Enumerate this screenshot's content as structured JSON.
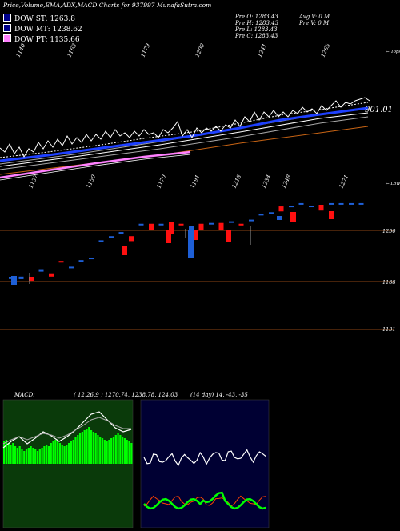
{
  "header": {
    "title": "Price,Volume,EMA,ADX,MACD Charts for 937997 MunafaSutra.com"
  },
  "legend": [
    {
      "label": "DOW ST: 1263.8",
      "color": "#ffffff"
    },
    {
      "label": "DOW MT: 1238.62",
      "color": "#ffffff"
    },
    {
      "label": "DOW PT: 1135.66",
      "color": "#ff80ff"
    }
  ],
  "ohlc": {
    "col1": [
      "Pre O: 1283.43",
      "Pre H: 1283.43",
      "Pre L: 1283.43",
      "Pre C: 1283.43"
    ],
    "col2": [
      "Avg V: 0 M",
      "Pre V: 0 M"
    ]
  },
  "labels": {
    "top": "← Tops",
    "lows": "← Lows",
    "last_value": "901.01"
  },
  "top_ticks": [
    "1140",
    "1163",
    "1179",
    "1200",
    "1241",
    "1265"
  ],
  "low_ticks": [
    "1137",
    "1150",
    "1170",
    "1191",
    "1218",
    "1234",
    "1248",
    "1271"
  ],
  "price_levels": [
    "1250",
    "1188",
    "1131"
  ],
  "macd": {
    "label": "MACD:",
    "params": "( 12,26,9 ) 1270.74, 1238.78, 124.03"
  },
  "adx": {
    "params": "(14 day) 14, -43, -35"
  },
  "colors": {
    "bg": "#000000",
    "up": "#1e5fd6",
    "down": "#ff1010",
    "ema_fast": "#1e40ff",
    "pink": "#ff80ff",
    "brown": "#c86414",
    "grid_line": "#8b4513",
    "macd_bg": "#0a3a0a",
    "macd_hist": "#00ff00",
    "adx_bg": "#000033",
    "adx_red": "#ff4000",
    "adx_green": "#00ff00"
  },
  "chart_data": {
    "type": "candlestick",
    "title": "Price,Volume,EMA,ADX,MACD Charts for 937997 MunafaSutra.com",
    "levels": [
      1250,
      1188,
      1131
    ],
    "candles": [
      {
        "c": "u",
        "o": 1193,
        "cl": 1192
      },
      {
        "c": "u",
        "o": 1191,
        "cl": 1194
      },
      {
        "c": "d",
        "o": 1193,
        "cl": 1189
      },
      {
        "c": "u",
        "o": 1202,
        "cl": 1200
      },
      {
        "c": "d",
        "o": 1197,
        "cl": 1194
      },
      {
        "c": "d",
        "o": 1213,
        "cl": 1211
      },
      {
        "c": "u",
        "o": 1205,
        "cl": 1206
      },
      {
        "c": "u",
        "o": 1213,
        "cl": 1214
      },
      {
        "c": "u",
        "o": 1216,
        "cl": 1217
      },
      {
        "c": "u",
        "o": 1238,
        "cl": 1238
      },
      {
        "c": "u",
        "o": 1241,
        "cl": 1243
      },
      {
        "c": "u",
        "o": 1248,
        "cl": 1247
      },
      {
        "c": "d",
        "o": 1243,
        "cl": 1237
      },
      {
        "c": "u",
        "o": 1257,
        "cl": 1258
      },
      {
        "c": "d",
        "o": 1258,
        "cl": 1250
      },
      {
        "c": "u",
        "o": 1258,
        "cl": 1258
      },
      {
        "c": "d",
        "o": 1260,
        "cl": 1246
      },
      {
        "c": "d",
        "o": 1258,
        "cl": 1257
      },
      {
        "c": "u",
        "o": 1255,
        "cl": 1237
      },
      {
        "c": "d",
        "o": 1258,
        "cl": 1250
      },
      {
        "c": "u",
        "o": 1258,
        "cl": 1259
      },
      {
        "c": "d",
        "o": 1259,
        "cl": 1250
      },
      {
        "c": "u",
        "o": 1261,
        "cl": 1261
      },
      {
        "c": "d",
        "o": 1258,
        "cl": 1256
      },
      {
        "c": "u",
        "o": 1262,
        "cl": 1263
      },
      {
        "c": "u",
        "o": 1269,
        "cl": 1270
      },
      {
        "c": "u",
        "o": 1272,
        "cl": 1271
      },
      {
        "c": "d",
        "o": 1279,
        "cl": 1273
      },
      {
        "c": "u",
        "o": 1280,
        "cl": 1278
      },
      {
        "c": "u",
        "o": 1282,
        "cl": 1283
      },
      {
        "c": "u",
        "o": 1280,
        "cl": 1280
      },
      {
        "c": "d",
        "o": 1281,
        "cl": 1274
      },
      {
        "c": "u",
        "o": 1283,
        "cl": 1283
      },
      {
        "c": "u",
        "o": 1283,
        "cl": 1283
      },
      {
        "c": "u",
        "o": 1283,
        "cl": 1283
      },
      {
        "c": "u",
        "o": 1283,
        "cl": 1283
      }
    ]
  }
}
